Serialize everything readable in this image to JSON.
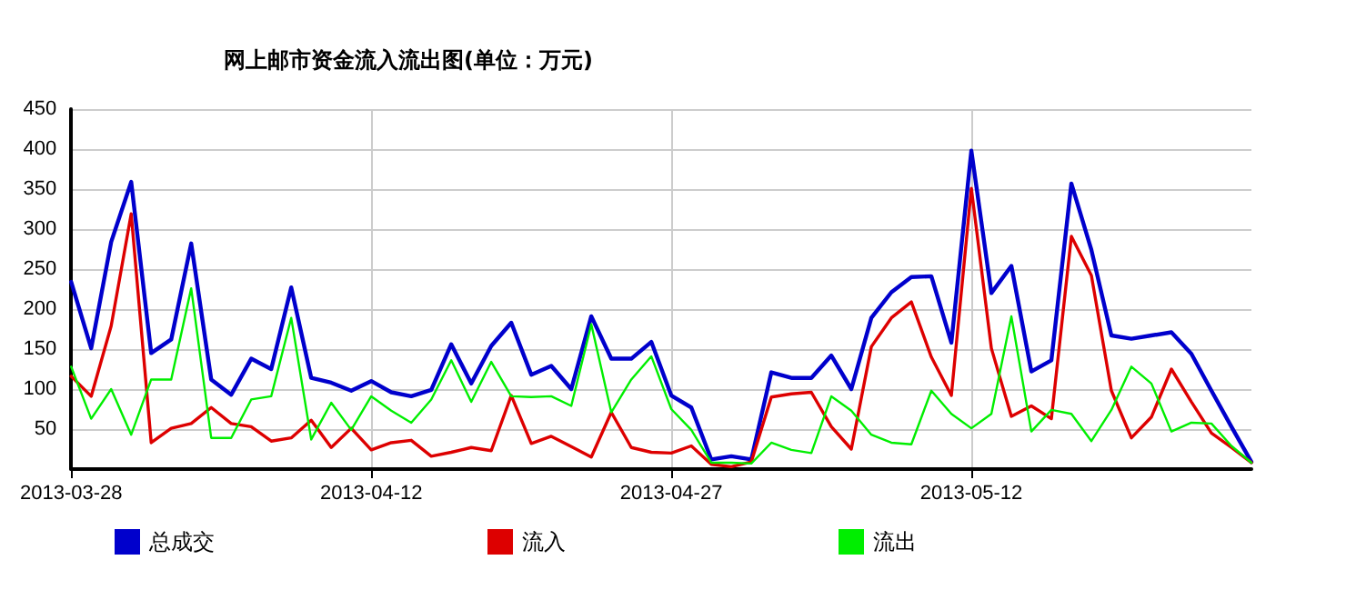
{
  "chart_data": {
    "type": "line",
    "title": "网上邮市资金流入流出图(单位：万元)",
    "x": [
      "2013-03-28",
      "2013-03-29",
      "2013-03-30",
      "2013-03-31",
      "2013-04-01",
      "2013-04-02",
      "2013-04-03",
      "2013-04-04",
      "2013-04-05",
      "2013-04-06",
      "2013-04-07",
      "2013-04-08",
      "2013-04-09",
      "2013-04-10",
      "2013-04-11",
      "2013-04-12",
      "2013-04-13",
      "2013-04-14",
      "2013-04-15",
      "2013-04-16",
      "2013-04-17",
      "2013-04-18",
      "2013-04-19",
      "2013-04-20",
      "2013-04-21",
      "2013-04-22",
      "2013-04-23",
      "2013-04-24",
      "2013-04-25",
      "2013-04-26",
      "2013-04-27",
      "2013-04-28",
      "2013-04-29",
      "2013-04-30",
      "2013-05-01",
      "2013-05-02",
      "2013-05-03",
      "2013-05-04",
      "2013-05-05",
      "2013-05-06",
      "2013-05-07",
      "2013-05-08",
      "2013-05-09",
      "2013-05-10",
      "2013-05-11",
      "2013-05-12",
      "2013-05-13",
      "2013-05-14",
      "2013-05-15",
      "2013-05-16",
      "2013-05-17",
      "2013-05-18",
      "2013-05-19",
      "2013-05-20",
      "2013-05-21",
      "2013-05-22",
      "2013-05-23",
      "2013-05-24",
      "2013-05-25",
      "2013-05-26"
    ],
    "series": [
      {
        "name": "总成交",
        "color": "#0000cc",
        "values": [
          234,
          151,
          284,
          359,
          145,
          162,
          282,
          112,
          93,
          138,
          125,
          227,
          114,
          108,
          98,
          110,
          96,
          91,
          99,
          156,
          107,
          154,
          183,
          118,
          129,
          100,
          191,
          138,
          138,
          159,
          92,
          77,
          12,
          16,
          12,
          121,
          114,
          114,
          142,
          100,
          189,
          221,
          240,
          241,
          158,
          398,
          220,
          254,
          122,
          136,
          357,
          274,
          167,
          163,
          167,
          171,
          144,
          98,
          53,
          9
        ]
      },
      {
        "name": "流入",
        "color": "#dd0000",
        "values": [
          116,
          91,
          179,
          319,
          33,
          51,
          57,
          77,
          57,
          53,
          35,
          39,
          61,
          27,
          51,
          24,
          33,
          36,
          16,
          21,
          27,
          23,
          92,
          32,
          41,
          28,
          15,
          71,
          27,
          21,
          20,
          29,
          6,
          3,
          9,
          90,
          94,
          96,
          53,
          25,
          153,
          189,
          209,
          140,
          92,
          351,
          151,
          66,
          79,
          63,
          291,
          242,
          98,
          39,
          65,
          125,
          84,
          45,
          27,
          8
        ]
      },
      {
        "name": "流出",
        "color": "#00ee00",
        "values": [
          128,
          63,
          100,
          43,
          112,
          112,
          226,
          39,
          39,
          87,
          91,
          189,
          37,
          83,
          49,
          91,
          73,
          58,
          87,
          136,
          84,
          134,
          91,
          90,
          91,
          79,
          181,
          71,
          112,
          141,
          75,
          49,
          8,
          8,
          7,
          33,
          24,
          20,
          91,
          73,
          43,
          33,
          31,
          98,
          69,
          51,
          69,
          191,
          47,
          74,
          69,
          35,
          74,
          128,
          107,
          47,
          58,
          57,
          29,
          8
        ]
      }
    ],
    "xlim": [
      "2013-03-28",
      "2013-05-26"
    ],
    "xticks": [
      "2013-03-28",
      "2013-04-12",
      "2013-04-27",
      "2013-05-12"
    ],
    "ylim": [
      0,
      450
    ],
    "yticks": [
      50,
      100,
      150,
      200,
      250,
      300,
      350,
      400,
      450
    ],
    "grid": true,
    "legend": "bottom left",
    "marker": "none",
    "line_style": "solid"
  }
}
